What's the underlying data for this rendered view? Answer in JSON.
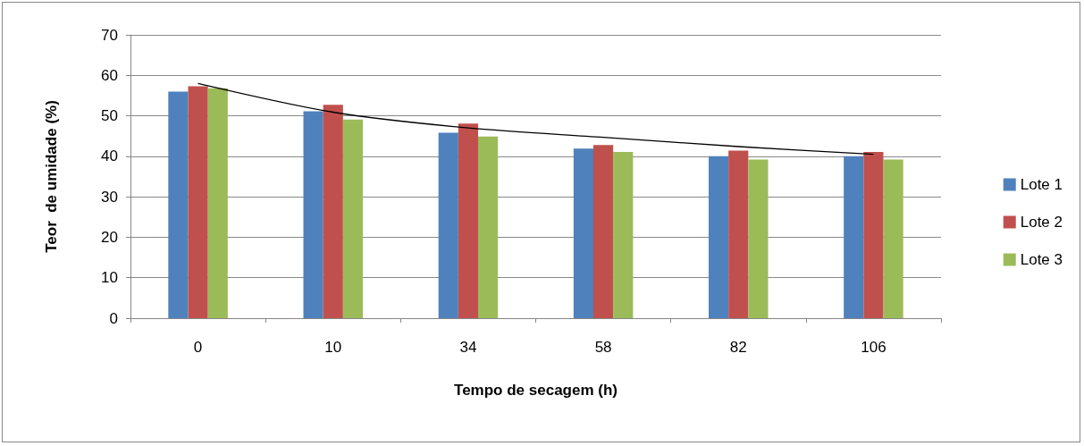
{
  "chart_data": {
    "type": "bar",
    "xlabel": "Tempo de secagem (h)",
    "ylabel": "Teor  de umidade (%)",
    "categories": [
      "0",
      "10",
      "34",
      "58",
      "82",
      "106"
    ],
    "series": [
      {
        "name": "Lote 1",
        "color": "#4f81bd",
        "values": [
          56.0,
          51.1,
          45.8,
          41.9,
          40.0,
          40.0
        ]
      },
      {
        "name": "Lote 2",
        "color": "#c0504d",
        "values": [
          57.3,
          52.7,
          48.1,
          42.8,
          41.4,
          41.1
        ]
      },
      {
        "name": "Lote 3",
        "color": "#9bbb59",
        "values": [
          56.8,
          49.1,
          44.9,
          41.1,
          39.2,
          39.2
        ]
      },
      {
        "type": "line",
        "color": "#000000",
        "marker": "none",
        "x": [
          "0",
          "10",
          "34",
          "58",
          "82",
          "106"
        ],
        "values": [
          58.0,
          50.9,
          47.0,
          44.7,
          42.4,
          40.5
        ]
      }
    ],
    "ylim": [
      0,
      70
    ],
    "yticks": [
      0,
      10,
      20,
      30,
      40,
      50,
      60,
      70
    ],
    "grid": "y",
    "legend": "right"
  }
}
